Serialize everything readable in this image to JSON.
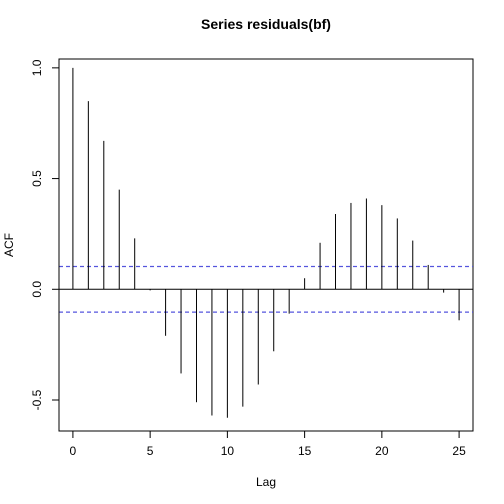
{
  "chart_data": {
    "type": "bar",
    "title": "Series  residuals(bf)",
    "xlabel": "Lag",
    "ylabel": "ACF",
    "x": [
      0,
      1,
      2,
      3,
      4,
      5,
      6,
      7,
      8,
      9,
      10,
      11,
      12,
      13,
      14,
      15,
      16,
      17,
      18,
      19,
      20,
      21,
      22,
      23,
      24,
      25
    ],
    "values": [
      1.0,
      0.85,
      0.67,
      0.45,
      0.23,
      -0.005,
      -0.21,
      -0.38,
      -0.51,
      -0.57,
      -0.58,
      -0.53,
      -0.43,
      -0.28,
      -0.11,
      0.05,
      0.21,
      0.34,
      0.39,
      0.41,
      0.38,
      0.32,
      0.22,
      0.11,
      -0.015,
      -0.14
    ],
    "xlim": [
      -0.9,
      25.9
    ],
    "ylim": [
      -0.64,
      1.04
    ],
    "xticks": [
      0,
      5,
      10,
      15,
      20,
      25
    ],
    "yticks": [
      -0.5,
      0.0,
      0.5,
      1.0
    ],
    "xtick_labels": [
      "0",
      "5",
      "10",
      "15",
      "20",
      "25"
    ],
    "ytick_labels": [
      "-0.5",
      "0.0",
      "0.5",
      "1.0"
    ],
    "confidence_band": 0.103,
    "grid": false,
    "colors": {
      "spike": "#000000",
      "zero_line": "#000000",
      "confidence": "#5555dd"
    }
  }
}
